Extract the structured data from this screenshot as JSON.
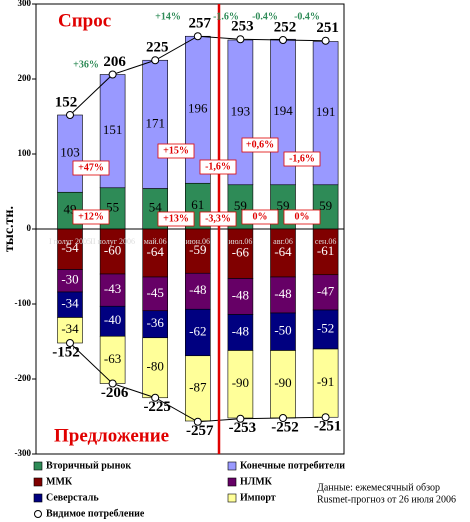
{
  "chart_data": {
    "type": "stacked_bar",
    "title_demand": "Спрос",
    "title_supply": "Предложение",
    "y_label": "тыс.тн.",
    "source": [
      "Данные: ежемесячный обзор",
      "Rusmet-прогноз от 26 июля 2006"
    ],
    "categories": [
      "I полуг 2005",
      "II полуг 2006",
      "май.06",
      "июн.06",
      "июл.06",
      "авг.06",
      "сен.06"
    ],
    "series": [
      {
        "name": "Вторичный рынок",
        "color": "#2e8b57",
        "text_color": "#000000",
        "values": [
          49,
          55,
          54,
          61,
          59,
          59,
          59
        ]
      },
      {
        "name": "Конечные потребители",
        "color": "#9999ff",
        "text_color": "#000000",
        "values": [
          103,
          151,
          171,
          196,
          193,
          194,
          191
        ]
      },
      {
        "name": "ММК",
        "color": "#800000",
        "text_color": "#ffffff",
        "values": [
          -54,
          -60,
          -64,
          -59,
          -66,
          -64,
          -61
        ]
      },
      {
        "name": "НЛМК",
        "color": "#660066",
        "text_color": "#ffffff",
        "values": [
          -30,
          -43,
          -45,
          -48,
          -48,
          -48,
          -47
        ]
      },
      {
        "name": "Северсталь",
        "color": "#000080",
        "text_color": "#ffffff",
        "values": [
          -34,
          -40,
          -36,
          -62,
          -48,
          -50,
          -52
        ]
      },
      {
        "name": "Импорт",
        "color": "#ffff99",
        "text_color": "#000000",
        "values": [
          -34,
          -63,
          -80,
          -87,
          -90,
          -90,
          -91
        ]
      }
    ],
    "consumption": {
      "name": "Видимое потребление",
      "values": [
        152,
        206,
        225,
        257,
        253,
        252,
        251
      ],
      "supply_values": [
        -152,
        -206,
        -225,
        -257,
        -253,
        -252,
        -251
      ]
    },
    "total_growth": [
      "+36%",
      null,
      "+14%",
      "-1.6%",
      "-0.4%",
      "-0.4%"
    ],
    "final_growth": [
      "+47%",
      null,
      "+15%",
      "-1,6%",
      "+0,6%",
      "-1,6%"
    ],
    "secondary_growth": [
      "+12%",
      null,
      "+13%",
      "-3,3%",
      "0%",
      "0%"
    ],
    "ylim": [
      -300,
      300
    ],
    "yticks": [
      300,
      200,
      100,
      0,
      -100,
      -200,
      -300
    ]
  }
}
